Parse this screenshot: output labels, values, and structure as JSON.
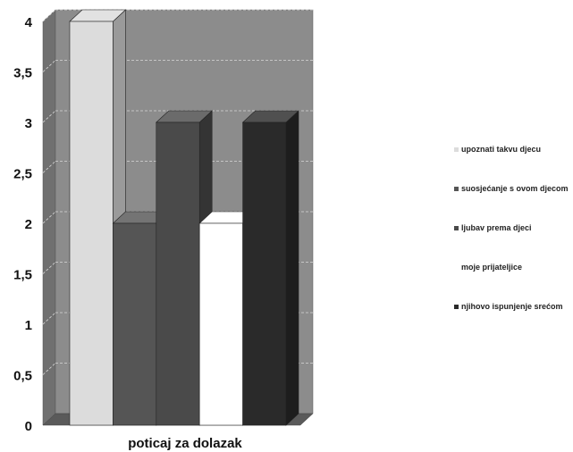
{
  "chart_data": {
    "type": "bar",
    "style": "3d-clustered-column",
    "title": "",
    "xlabel": "poticaj za dolazak",
    "ylabel": "",
    "ylim": [
      0,
      4
    ],
    "yticks": [
      "0",
      "0,5",
      "1",
      "1,5",
      "2",
      "2,5",
      "3",
      "3,5",
      "4"
    ],
    "grid": true,
    "legend_position": "right",
    "categories": [
      "poticaj za dolazak"
    ],
    "series": [
      {
        "name": "upoznati takvu djecu",
        "values": [
          4
        ],
        "color": "#dcdcdc"
      },
      {
        "name": "suosjećanje s ovom djecom",
        "values": [
          2
        ],
        "color": "#555555"
      },
      {
        "name": "ljubav prema djeci",
        "values": [
          3
        ],
        "color": "#4a4a4a"
      },
      {
        "name": "moje prijateljice",
        "values": [
          2
        ],
        "color": "#ffffff"
      },
      {
        "name": "njihovo ispunjenje srećom",
        "values": [
          3
        ],
        "color": "#2a2a2a"
      }
    ],
    "wall_color": "#8c8c8c",
    "floor_color": "#5a5a5a"
  }
}
